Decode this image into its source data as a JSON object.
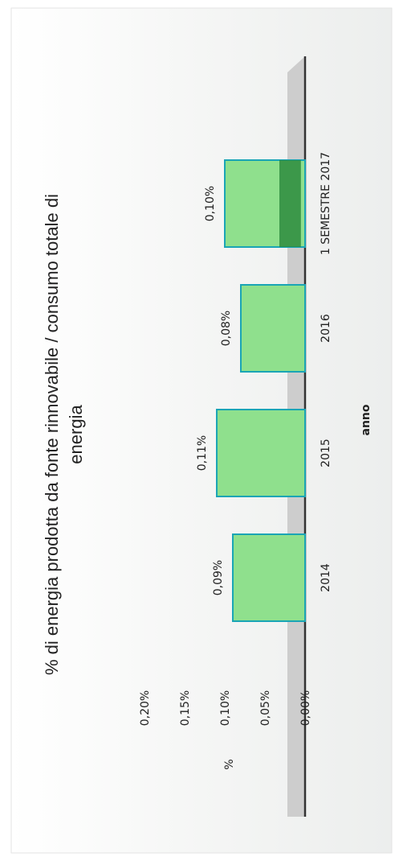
{
  "chart_data": {
    "type": "bar",
    "title": "% di energia prodotta da fonte rinnovabile / consumo totale di energia",
    "title_lines": [
      "% di energia prodotta da fonte rinnovabile / consumo totale di",
      "energia"
    ],
    "xlabel": "anno",
    "ylabel": "%",
    "categories": [
      "2014",
      "2015",
      "2016",
      "1 SEMESTRE 2017"
    ],
    "values": [
      0.09,
      0.11,
      0.08,
      0.1
    ],
    "value_labels": [
      "0,09%",
      "0,11%",
      "0,08%",
      "0,10%"
    ],
    "ylim": [
      0,
      0.2
    ],
    "y_ticks": [
      0,
      0.05,
      0.1,
      0.15,
      0.2
    ],
    "y_tick_labels": [
      "0,00%",
      "0,05%",
      "0,10%",
      "0,15%",
      "0,20%"
    ],
    "grid": false,
    "legend": "none",
    "orientation": "rotated 90° clockwise",
    "colors": {
      "bar_face": "#8fe08d",
      "bar_edge": "#1aa5b5",
      "bar_side": "#2e8b3e",
      "floor": "#c9c9c9",
      "axis": "#333333",
      "text": "#222222"
    }
  }
}
